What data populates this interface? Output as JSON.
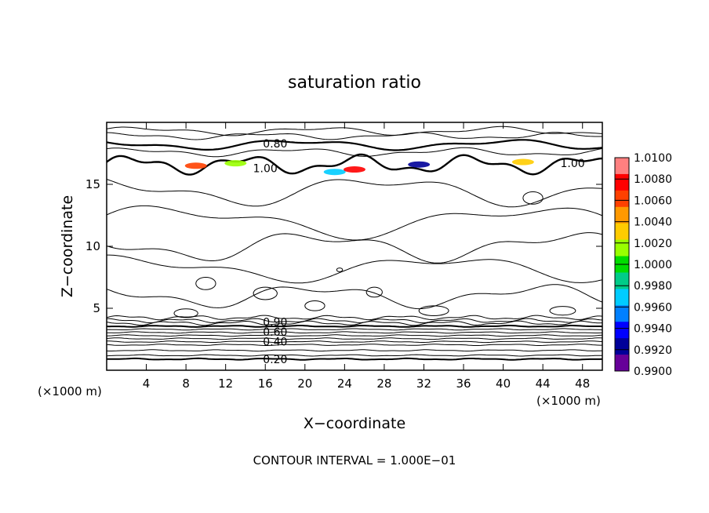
{
  "chart_data": {
    "type": "contour",
    "title": "saturation ratio",
    "xlabel": "X−coordinate",
    "ylabel": "Z−coordinate",
    "x_unit_left": "(×1000 m)",
    "x_unit_right": "(×1000 m)",
    "xlim": [
      0,
      50
    ],
    "ylim": [
      0,
      20
    ],
    "xticks": [
      "4",
      "8",
      "12",
      "16",
      "20",
      "24",
      "28",
      "32",
      "36",
      "40",
      "44",
      "48"
    ],
    "yticks": [
      "5",
      "10",
      "15"
    ],
    "contour_interval_text": "CONTOUR INTERVAL = 1.000E−01",
    "contour_labels": [
      {
        "text": "0.80",
        "x": 17,
        "z": 18.3
      },
      {
        "text": "1.00",
        "x": 16,
        "z": 16.3
      },
      {
        "text": "1.00",
        "x": 47,
        "z": 16.7
      },
      {
        "text": "0.90",
        "x": 17,
        "z": 3.9
      },
      {
        "text": "0.60",
        "x": 17,
        "z": 3.1
      },
      {
        "text": "0.40",
        "x": 17,
        "z": 2.3
      },
      {
        "text": "0.20",
        "x": 17,
        "z": 0.9
      }
    ],
    "colorbar": {
      "labels": [
        "1.0100",
        "1.0080",
        "1.0060",
        "1.0040",
        "1.0020",
        "1.0000",
        "0.9980",
        "0.9960",
        "0.9940",
        "0.9920",
        "0.9900"
      ],
      "colors": [
        "#ff8080",
        "#ff0000",
        "#ff4000",
        "#ff9900",
        "#ffcc00",
        "#99ff00",
        "#00dd00",
        "#00cc88",
        "#00ccff",
        "#0080ff",
        "#0000ff",
        "#000099",
        "#660099"
      ]
    },
    "line_color": "#000000"
  }
}
